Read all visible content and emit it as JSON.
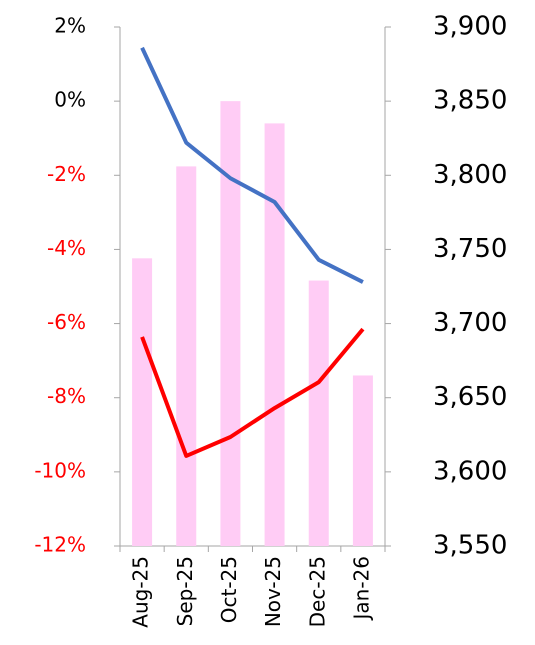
{
  "chart_data": {
    "type": "bar_line",
    "categories": [
      "Aug-25",
      "Sep-25",
      "Oct-25",
      "Nov-25",
      "Dec-25",
      "Jan-26"
    ],
    "series": [
      {
        "type": "bar",
        "axis": "y2",
        "color": "#ffccf5",
        "values": [
          3744,
          3806,
          3850,
          3835,
          3729,
          3665
        ]
      },
      {
        "type": "line",
        "axis": "y2",
        "color": "#4472c4",
        "values": [
          3886,
          3822,
          3798,
          3782,
          3743,
          3728
        ]
      },
      {
        "type": "line",
        "axis": "y",
        "color": "#ff0000",
        "values": [
          -6.36,
          -9.57,
          -9.06,
          -8.28,
          -7.58,
          -6.15
        ]
      }
    ],
    "ylim": [
      -12,
      2
    ],
    "yticks": [
      {
        "value": 2,
        "label": "2%"
      },
      {
        "value": 0,
        "label": "0%"
      },
      {
        "value": -2,
        "label": "-2%"
      },
      {
        "value": -4,
        "label": "-4%"
      },
      {
        "value": -6,
        "label": "-6%"
      },
      {
        "value": -8,
        "label": "-8%"
      },
      {
        "value": -10,
        "label": "-10%"
      },
      {
        "value": -12,
        "label": "-12%"
      }
    ],
    "negative_tick_color": "#ff0000",
    "y2lim": [
      3550,
      3900
    ],
    "y2ticks": [
      {
        "value": 3550,
        "label": "3,550"
      },
      {
        "value": 3600,
        "label": "3,600"
      },
      {
        "value": 3650,
        "label": "3,650"
      },
      {
        "value": 3700,
        "label": "3,700"
      },
      {
        "value": 3750,
        "label": "3,750"
      },
      {
        "value": 3800,
        "label": "3,800"
      },
      {
        "value": 3850,
        "label": "3,850"
      },
      {
        "value": 3900,
        "label": "3,900"
      }
    ],
    "grid": false
  }
}
